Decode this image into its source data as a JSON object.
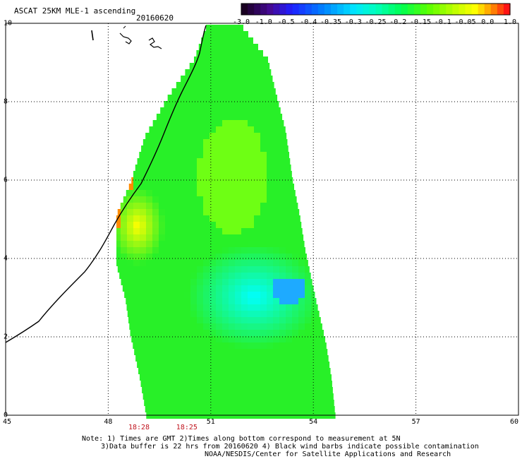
{
  "header": {
    "title": "ASCAT 25KM MLE-1 ascending",
    "date": "20160620"
  },
  "colorbar": {
    "labels": [
      "-3.0",
      "-1.0",
      "-0.5",
      "-0.4",
      "-0.35",
      "-0.3",
      "-0.25",
      "-0.2",
      "-0.15",
      "-0.1",
      "-0.05",
      "0.0",
      "1.0"
    ],
    "colors": [
      "#1a0022",
      "#3a0a8c",
      "#1a1aff",
      "#0080ff",
      "#00c0ff",
      "#00ffff",
      "#00ffb0",
      "#00ff40",
      "#60ff00",
      "#b0ff00",
      "#ffff00",
      "#ff9000",
      "#ff1010"
    ]
  },
  "axes": {
    "x_ticks": [
      "45",
      "48",
      "51",
      "54",
      "57",
      "60"
    ],
    "x_values": [
      45,
      48,
      51,
      54,
      57,
      60
    ],
    "y_ticks": [
      "0",
      "2",
      "4",
      "6",
      "8",
      "10"
    ],
    "y_values": [
      0,
      2,
      4,
      6,
      8,
      10
    ]
  },
  "times": [
    {
      "label": "18:28",
      "lon": 48.9
    },
    {
      "label": "18:25",
      "lon": 50.3
    }
  ],
  "notes": {
    "line1": "Note: 1) Times are GMT 2)Times along bottom correspond to measurement at 5N",
    "line2": "3)Data buffer is 22 hrs from 20160620 4) Black wind barbs indicate possible contamination",
    "line3": "NOAA/NESDIS/Center for Satellite Applications and Research"
  }
}
